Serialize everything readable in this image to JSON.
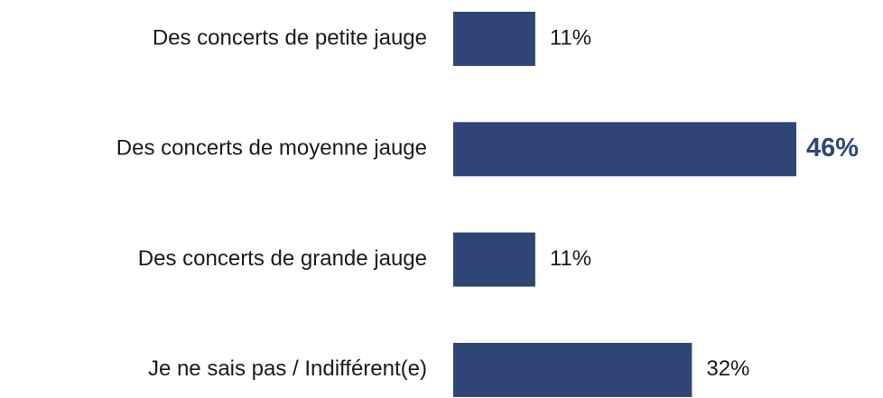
{
  "chart_data": {
    "type": "bar",
    "orientation": "horizontal",
    "categories": [
      "Des concerts de petite jauge",
      "Des concerts de moyenne jauge",
      "Des concerts de grande jauge",
      "Je ne sais pas / Indifférent(e)"
    ],
    "values": [
      11,
      46,
      11,
      32
    ],
    "value_labels": [
      "11%",
      "46%",
      "11%",
      "32%"
    ],
    "color": "#2f4575"
  }
}
